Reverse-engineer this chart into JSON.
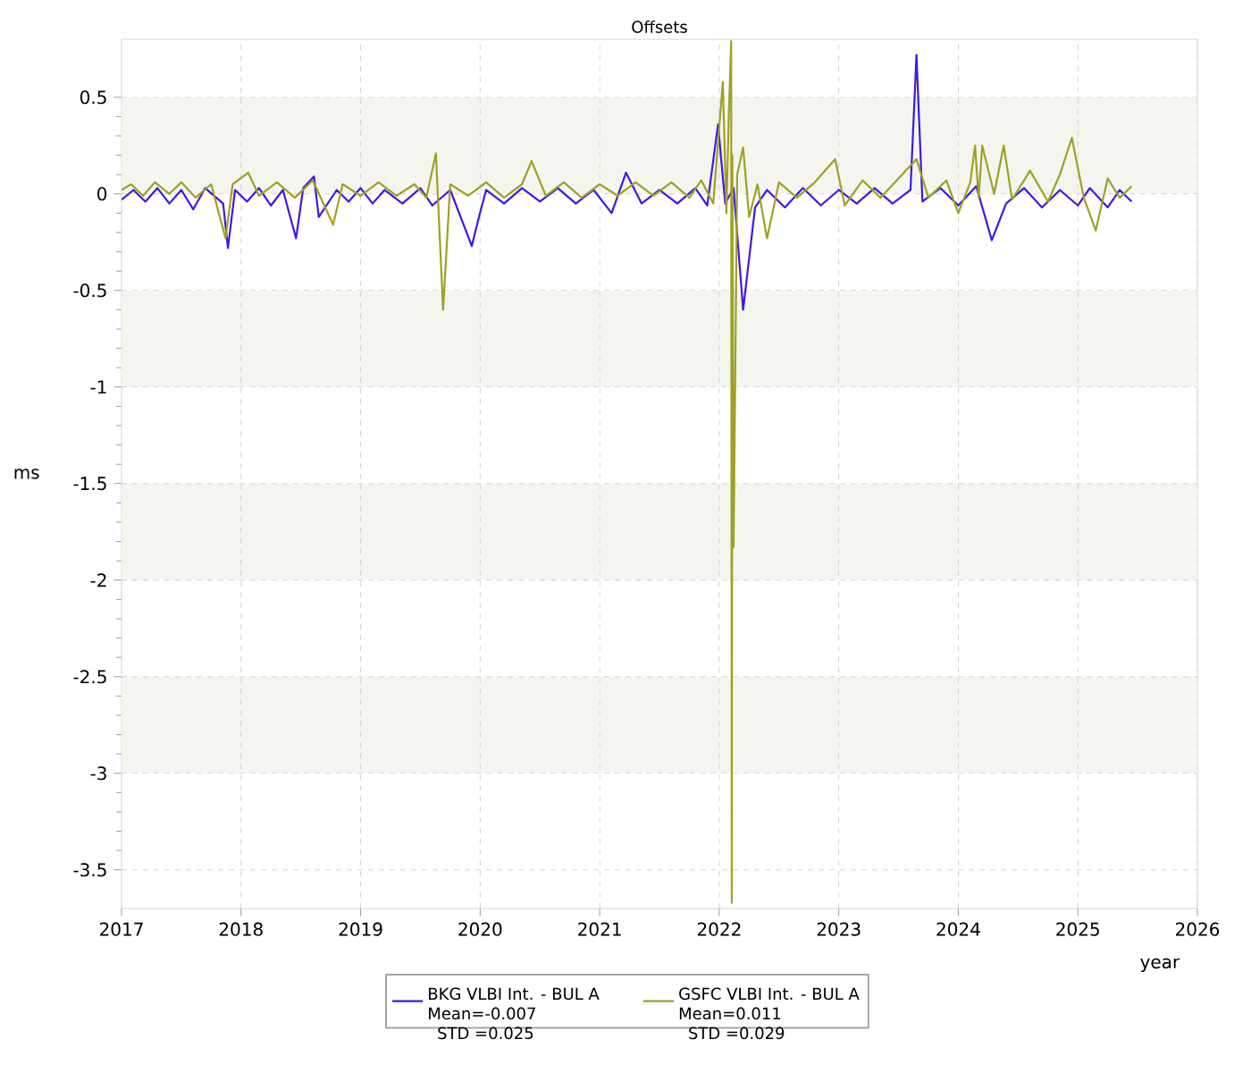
{
  "chart_data": {
    "type": "line",
    "title": "Offsets",
    "xlabel": "year",
    "ylabel": "ms",
    "xlim": [
      2017,
      2026
    ],
    "xticks": [
      2017,
      2018,
      2019,
      2020,
      2021,
      2022,
      2023,
      2024,
      2025,
      2026
    ],
    "ylim": [
      -3.7,
      0.8
    ],
    "yticks": [
      -3.5,
      -3,
      -2.5,
      -2,
      -1.5,
      -1,
      -0.5,
      0,
      0.5
    ],
    "grid": true,
    "legend": "bottom",
    "bands": [
      {
        "axis": "y",
        "from": 0,
        "to": 0.5,
        "color": "#f5f5f0"
      },
      {
        "axis": "y",
        "from": -1,
        "to": -0.5,
        "color": "#f5f5f0"
      },
      {
        "axis": "y",
        "from": -2,
        "to": -1.5,
        "color": "#f5f5f0"
      },
      {
        "axis": "y",
        "from": -3,
        "to": -2.5,
        "color": "#f5f5f0"
      }
    ],
    "annotations": [
      "Mean=-0.007",
      "STD =0.025",
      "Mean=0.011",
      "STD =0.029"
    ],
    "series": [
      {
        "name": "BKG VLBI Int. - BUL A",
        "color": "#3b1ae6",
        "x": [
          2017.0,
          2017.1,
          2017.2,
          2017.3,
          2017.4,
          2017.5,
          2017.6,
          2017.7,
          2017.85,
          2017.89,
          2017.95,
          2018.05,
          2018.15,
          2018.25,
          2018.35,
          2018.46,
          2018.52,
          2018.61,
          2018.65,
          2018.8,
          2018.9,
          2019.0,
          2019.1,
          2019.2,
          2019.35,
          2019.5,
          2019.6,
          2019.75,
          2019.93,
          2019.99,
          2020.05,
          2020.2,
          2020.35,
          2020.5,
          2020.65,
          2020.8,
          2020.95,
          2021.1,
          2021.22,
          2021.35,
          2021.5,
          2021.65,
          2021.8,
          2021.9,
          2021.99,
          2022.05,
          2022.12,
          2022.2,
          2022.3,
          2022.4,
          2022.55,
          2022.7,
          2022.85,
          2023.0,
          2023.15,
          2023.3,
          2023.45,
          2023.6,
          2023.65,
          2023.7,
          2023.85,
          2024.0,
          2024.15,
          2024.28,
          2024.4,
          2024.55,
          2024.7,
          2024.85,
          2025.0,
          2025.1,
          2025.25,
          2025.35,
          2025.45
        ],
        "values": [
          -0.03,
          0.02,
          -0.04,
          0.03,
          -0.05,
          0.02,
          -0.08,
          0.03,
          -0.05,
          -0.28,
          0.02,
          -0.04,
          0.03,
          -0.06,
          0.02,
          -0.23,
          0.03,
          0.09,
          -0.12,
          0.02,
          -0.04,
          0.03,
          -0.05,
          0.02,
          -0.05,
          0.03,
          -0.06,
          0.02,
          -0.27,
          -0.12,
          0.02,
          -0.05,
          0.03,
          -0.04,
          0.03,
          -0.05,
          0.02,
          -0.1,
          0.11,
          -0.05,
          0.02,
          -0.05,
          0.03,
          -0.06,
          0.36,
          -0.05,
          0.03,
          -0.6,
          -0.07,
          0.02,
          -0.07,
          0.03,
          -0.06,
          0.02,
          -0.05,
          0.03,
          -0.05,
          0.02,
          0.72,
          -0.04,
          0.03,
          -0.06,
          0.04,
          -0.24,
          -0.05,
          0.03,
          -0.07,
          0.02,
          -0.06,
          0.03,
          -0.07,
          0.02,
          -0.04
        ]
      },
      {
        "name": "GSFC VLBI Int. - BUL A",
        "color": "#a0a024",
        "x": [
          2017.0,
          2017.08,
          2017.18,
          2017.28,
          2017.4,
          2017.5,
          2017.62,
          2017.75,
          2017.87,
          2017.93,
          2018.06,
          2018.15,
          2018.3,
          2018.45,
          2018.6,
          2018.77,
          2018.85,
          2019.0,
          2019.15,
          2019.3,
          2019.45,
          2019.55,
          2019.63,
          2019.69,
          2019.75,
          2019.9,
          2020.05,
          2020.2,
          2020.35,
          2020.43,
          2020.55,
          2020.7,
          2020.85,
          2021.0,
          2021.15,
          2021.3,
          2021.45,
          2021.6,
          2021.75,
          2021.85,
          2021.95,
          2022.03,
          2022.06,
          2022.08,
          2022.1,
          2022.105,
          2022.11,
          2022.12,
          2022.15,
          2022.2,
          2022.25,
          2022.32,
          2022.4,
          2022.5,
          2022.65,
          2022.8,
          2022.97,
          2023.05,
          2023.2,
          2023.35,
          2023.5,
          2023.65,
          2023.75,
          2023.9,
          2024.0,
          2024.1,
          2024.14,
          2024.17,
          2024.2,
          2024.3,
          2024.38,
          2024.45,
          2024.6,
          2024.75,
          2024.85,
          2024.95,
          2025.05,
          2025.15,
          2025.25,
          2025.35,
          2025.45
        ],
        "values": [
          0.02,
          0.05,
          -0.01,
          0.06,
          0.0,
          0.06,
          -0.02,
          0.05,
          -0.23,
          0.05,
          0.11,
          -0.01,
          0.06,
          -0.02,
          0.07,
          -0.16,
          0.05,
          -0.01,
          0.06,
          -0.01,
          0.05,
          -0.02,
          0.21,
          -0.6,
          0.05,
          -0.01,
          0.06,
          -0.02,
          0.05,
          0.17,
          -0.01,
          0.06,
          -0.02,
          0.05,
          -0.01,
          0.06,
          -0.01,
          0.06,
          -0.02,
          0.07,
          -0.05,
          0.58,
          -0.1,
          0.4,
          0.79,
          -3.67,
          0.2,
          -1.83,
          0.1,
          0.24,
          -0.12,
          0.05,
          -0.23,
          0.06,
          -0.02,
          0.06,
          0.18,
          -0.06,
          0.07,
          -0.02,
          0.08,
          0.18,
          -0.02,
          0.07,
          -0.1,
          0.06,
          0.25,
          -0.02,
          0.25,
          0.0,
          0.25,
          -0.03,
          0.12,
          -0.04,
          0.1,
          0.29,
          -0.02,
          -0.19,
          0.08,
          -0.02,
          0.04
        ]
      }
    ]
  }
}
